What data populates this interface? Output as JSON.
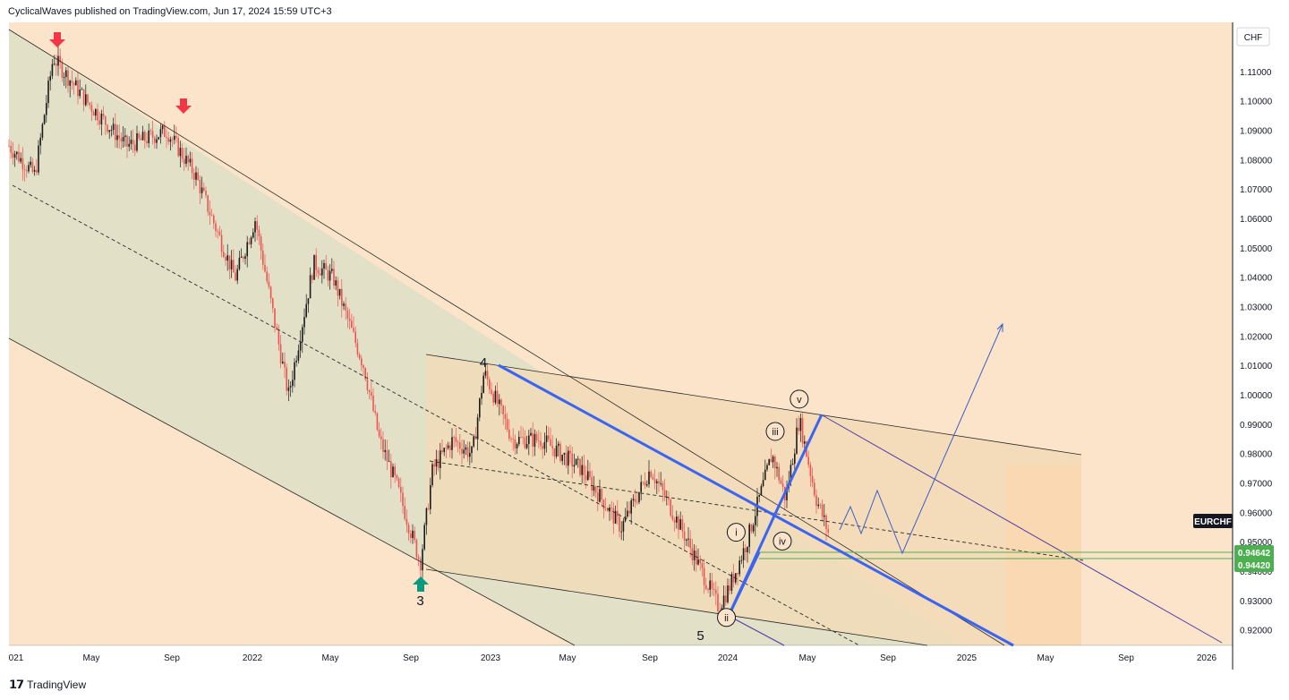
{
  "header": {
    "text": "CyclicalWaves published on TradingView.com, Jun 17, 2024 15:59 UTC+3"
  },
  "footer": {
    "logo": "𝟭𝟳",
    "text": "TradingView"
  },
  "chart_data": {
    "type": "line",
    "symbol": "EURCHF",
    "currency": "CHF",
    "ylim": [
      0.915,
      1.127
    ],
    "y_ticks": [
      "1.11000",
      "1.10000",
      "1.09000",
      "1.08000",
      "1.07000",
      "1.06000",
      "1.05000",
      "1.04000",
      "1.03000",
      "1.02000",
      "1.01000",
      "1.00000",
      "0.99000",
      "0.98000",
      "0.97000",
      "0.96000",
      "0.95000",
      "0.94000",
      "0.93000",
      "0.92000"
    ],
    "x_ticks": [
      "021",
      "May",
      "Sep",
      "2022",
      "May",
      "Sep",
      "2023",
      "May",
      "Sep",
      "2024",
      "May",
      "Sep",
      "2025",
      "May",
      "Sep",
      "2026"
    ],
    "price_labels": [
      {
        "text": "EURCHF",
        "value": 0.9598
      },
      {
        "text": "0.94642",
        "value": 0.94642
      },
      {
        "text": "0.94420",
        "value": 0.9442
      }
    ],
    "x": [
      "2021-01-01",
      "2021-02-10",
      "2021-03-10",
      "2021-05-01",
      "2021-07-01",
      "2021-09-01",
      "2021-10-15",
      "2021-12-15",
      "2022-01-15",
      "2022-03-07",
      "2022-04-15",
      "2022-05-15",
      "2022-07-01",
      "2022-07-25",
      "2022-08-20",
      "2022-09-26",
      "2022-10-15",
      "2022-11-15",
      "2022-12-15",
      "2023-01-02",
      "2023-02-15",
      "2023-04-01",
      "2023-06-01",
      "2023-08-01",
      "2023-09-15",
      "2023-11-01",
      "2023-12-29",
      "2024-01-15",
      "2024-02-10",
      "2024-03-20",
      "2024-04-10",
      "2024-05-01",
      "2024-05-27",
      "2024-06-17"
    ],
    "series": [
      {
        "values": [
          1.085,
          1.075,
          1.115,
          1.1,
          1.085,
          1.09,
          1.075,
          1.04,
          1.06,
          1.0,
          1.045,
          1.04,
          1.01,
          0.985,
          0.97,
          0.943,
          0.975,
          0.985,
          0.98,
          1.008,
          0.985,
          0.985,
          0.975,
          0.955,
          0.975,
          0.955,
          0.928,
          0.935,
          0.95,
          0.98,
          0.965,
          0.992,
          0.965,
          0.952
        ]
      }
    ],
    "annotations": [
      {
        "text": "4",
        "x": "2023-01-01",
        "y": 1.011
      },
      {
        "text": "3",
        "x": "2022-09-26",
        "y": 0.93
      },
      {
        "text": "5",
        "x": "2023-12-01",
        "y": 0.918
      },
      {
        "text": "i",
        "x": "2024-01-25",
        "y": 0.9535,
        "circled": true
      },
      {
        "text": "ii",
        "x": "2024-01-10",
        "y": 0.9245,
        "circled": true
      },
      {
        "text": "iii",
        "x": "2024-03-25",
        "y": 0.9878,
        "circled": true
      },
      {
        "text": "iv",
        "x": "2024-04-05",
        "y": 0.9505,
        "circled": true
      },
      {
        "text": "v",
        "x": "2024-05-01",
        "y": 0.9988,
        "circled": true
      }
    ],
    "colors": {
      "bullish": "#26a69a",
      "bearish": "#ef5350",
      "candle_up": "#1b1b1b",
      "wave_line": "#3b64f0",
      "projection": "#3a5ec8",
      "channel_fill": "#dfe0c8",
      "page_fill": "#fbe4c9",
      "support": "#4caf50",
      "price_box": "#4caf50",
      "symbol_box": "#131722"
    }
  }
}
